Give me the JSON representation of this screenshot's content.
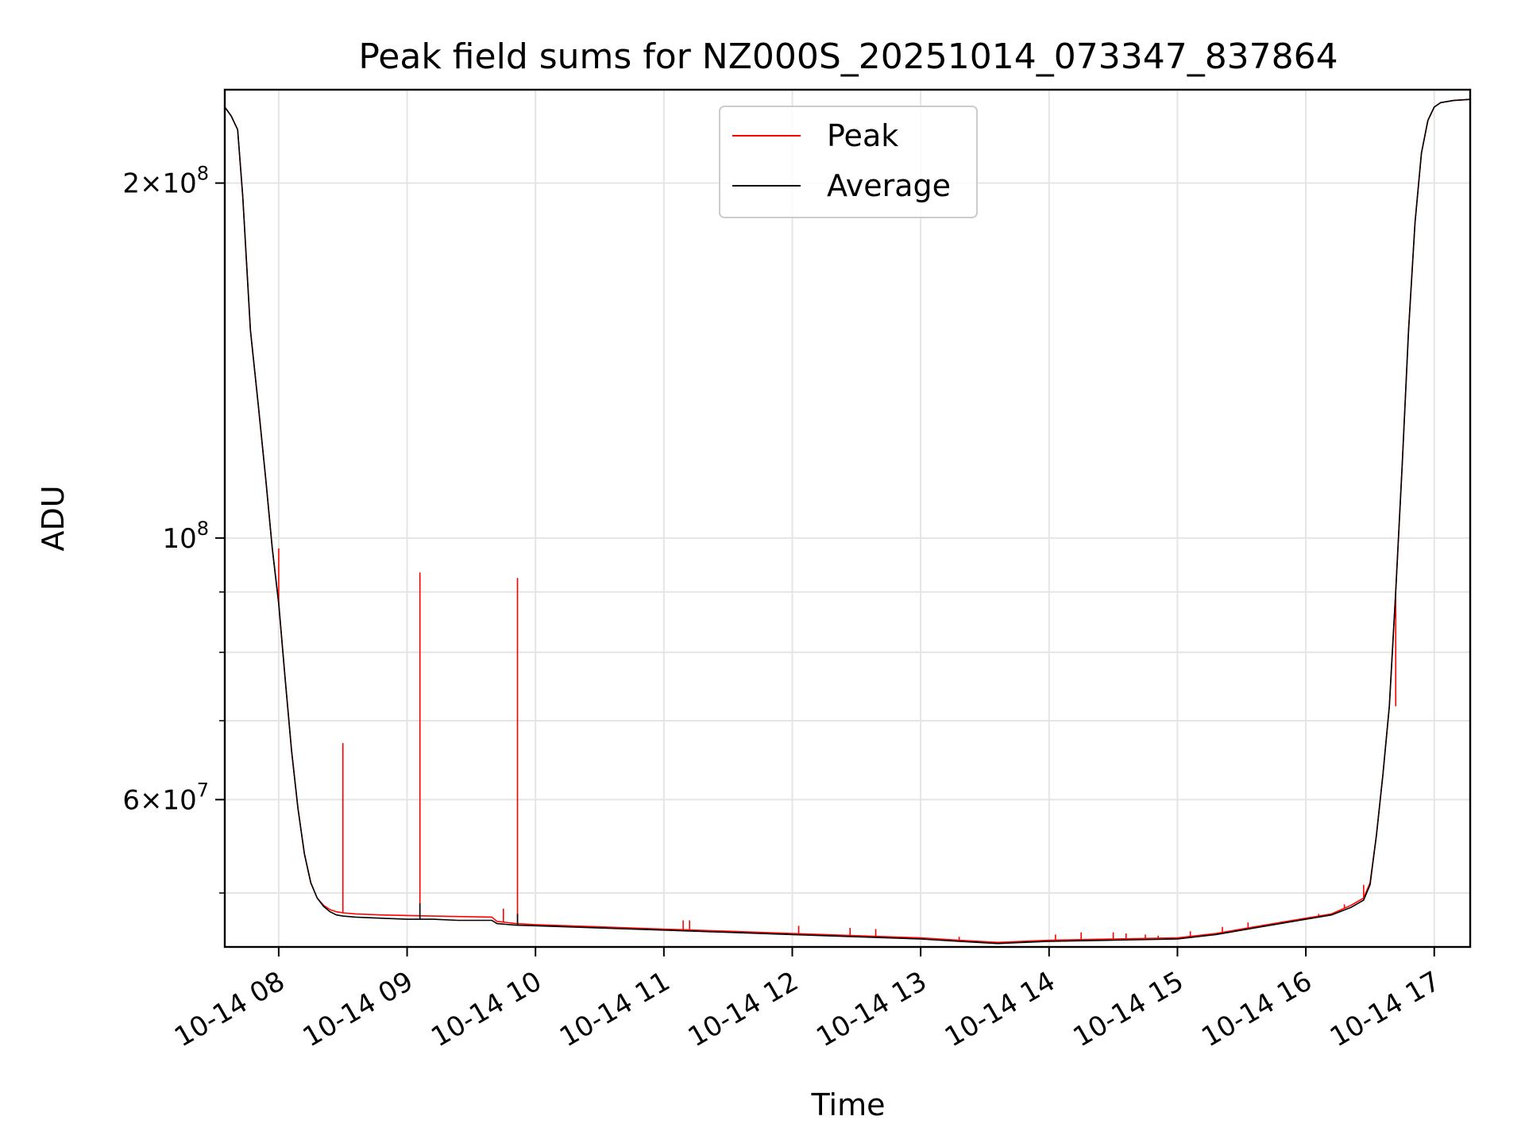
{
  "chart_data": {
    "type": "line",
    "title": "Peak field sums for NZ000S_20251014_073347_837864",
    "xlabel": "Time",
    "ylabel": "ADU",
    "yscale": "log",
    "xlim": [
      7.58,
      17.28
    ],
    "ylim": [
      45000000,
      240000000
    ],
    "grid": true,
    "legend_position": "upper center",
    "x_ticks": [
      {
        "value": 8,
        "label": "10-14 08"
      },
      {
        "value": 9,
        "label": "10-14 09"
      },
      {
        "value": 10,
        "label": "10-14 10"
      },
      {
        "value": 11,
        "label": "10-14 11"
      },
      {
        "value": 12,
        "label": "10-14 12"
      },
      {
        "value": 13,
        "label": "10-14 13"
      },
      {
        "value": 14,
        "label": "10-14 14"
      },
      {
        "value": 15,
        "label": "10-14 15"
      },
      {
        "value": 16,
        "label": "10-14 16"
      },
      {
        "value": 17,
        "label": "10-14 17"
      }
    ],
    "y_major_ticks": [
      {
        "value": 100000000,
        "base": "10",
        "exp": "8",
        "mantissa": ""
      },
      {
        "value": 200000000,
        "base": "10",
        "exp": "8",
        "mantissa": "2×"
      },
      {
        "value": 60000000,
        "base": "10",
        "exp": "7",
        "mantissa": "6×"
      }
    ],
    "y_minor_grid": [
      50000000,
      70000000,
      80000000,
      90000000
    ],
    "series": [
      {
        "name": "Peak",
        "color": "#ff0000",
        "x": [
          7.58,
          7.63,
          7.68,
          7.72,
          7.78,
          7.84,
          7.9,
          7.95,
          8.0,
          8.05,
          8.1,
          8.15,
          8.2,
          8.25,
          8.3,
          8.35,
          8.4,
          8.45,
          8.5,
          8.6,
          8.8,
          9.0,
          9.2,
          9.4,
          9.66,
          9.7,
          9.85,
          10.0,
          10.5,
          11.0,
          11.5,
          12.0,
          12.5,
          13.0,
          13.3,
          13.6,
          14.0,
          14.5,
          15.0,
          15.3,
          15.6,
          15.8,
          16.0,
          16.2,
          16.35,
          16.45,
          16.5,
          16.55,
          16.6,
          16.65,
          16.7,
          16.75,
          16.8,
          16.85,
          16.9,
          16.95,
          17.0,
          17.05,
          17.15,
          17.28
        ],
        "y": [
          232000000,
          228000000,
          222000000,
          195000000,
          150000000,
          130000000,
          112000000,
          98000000,
          88000000,
          76000000,
          66000000,
          59000000,
          54000000,
          51000000,
          49500000,
          48800000,
          48400000,
          48200000,
          48100000,
          48000000,
          47900000,
          47850000,
          47800000,
          47750000,
          47700000,
          47300000,
          47100000,
          47000000,
          46800000,
          46600000,
          46400000,
          46200000,
          46000000,
          45800000,
          45600000,
          45400000,
          45600000,
          45700000,
          45800000,
          46200000,
          46800000,
          47200000,
          47600000,
          48000000,
          48800000,
          49500000,
          51000000,
          56000000,
          63000000,
          72000000,
          90000000,
          115000000,
          150000000,
          185000000,
          212000000,
          226000000,
          232000000,
          234000000,
          235000000,
          235500000
        ],
        "spikes": [
          [
            8.0,
            98000000
          ],
          [
            8.5,
            67000000
          ],
          [
            9.1,
            93500000
          ],
          [
            9.75,
            48500000
          ],
          [
            9.86,
            92500000
          ],
          [
            11.15,
            47400000
          ],
          [
            11.2,
            47400000
          ],
          [
            12.05,
            46900000
          ],
          [
            12.45,
            46700000
          ],
          [
            12.65,
            46600000
          ],
          [
            13.3,
            45900000
          ],
          [
            14.05,
            46100000
          ],
          [
            14.25,
            46300000
          ],
          [
            14.5,
            46300000
          ],
          [
            14.6,
            46200000
          ],
          [
            14.75,
            46100000
          ],
          [
            14.85,
            46000000
          ],
          [
            15.1,
            46400000
          ],
          [
            15.35,
            46800000
          ],
          [
            15.55,
            47200000
          ],
          [
            16.1,
            48000000
          ],
          [
            16.3,
            48900000
          ],
          [
            16.45,
            50800000
          ],
          [
            16.7,
            72000000
          ]
        ]
      },
      {
        "name": "Average",
        "color": "#000000",
        "x": [
          7.58,
          7.63,
          7.68,
          7.72,
          7.78,
          7.84,
          7.9,
          7.95,
          8.0,
          8.05,
          8.1,
          8.15,
          8.2,
          8.25,
          8.3,
          8.35,
          8.4,
          8.45,
          8.5,
          8.6,
          8.8,
          9.0,
          9.2,
          9.4,
          9.66,
          9.7,
          9.85,
          10.0,
          10.5,
          11.0,
          11.5,
          12.0,
          12.5,
          13.0,
          13.3,
          13.6,
          14.0,
          14.5,
          15.0,
          15.3,
          15.6,
          15.8,
          16.0,
          16.2,
          16.35,
          16.45,
          16.5,
          16.55,
          16.6,
          16.65,
          16.7,
          16.75,
          16.8,
          16.85,
          16.9,
          16.95,
          17.0,
          17.05,
          17.15,
          17.28
        ],
        "y": [
          232000000,
          228000000,
          222000000,
          195000000,
          150000000,
          130000000,
          112000000,
          98000000,
          88000000,
          76000000,
          66000000,
          59000000,
          54000000,
          51000000,
          49500000,
          48700000,
          48200000,
          47900000,
          47800000,
          47700000,
          47600000,
          47500000,
          47500000,
          47400000,
          47400000,
          47100000,
          46950000,
          46900000,
          46700000,
          46500000,
          46300000,
          46100000,
          45900000,
          45700000,
          45500000,
          45300000,
          45500000,
          45600000,
          45700000,
          46100000,
          46700000,
          47100000,
          47500000,
          47900000,
          48600000,
          49300000,
          50800000,
          56000000,
          63000000,
          72000000,
          90000000,
          115000000,
          150000000,
          185000000,
          212000000,
          226000000,
          232000000,
          234000000,
          235000000,
          235500000
        ],
        "spikes": [
          [
            9.1,
            49000000
          ],
          [
            9.86,
            48000000
          ]
        ]
      }
    ]
  }
}
